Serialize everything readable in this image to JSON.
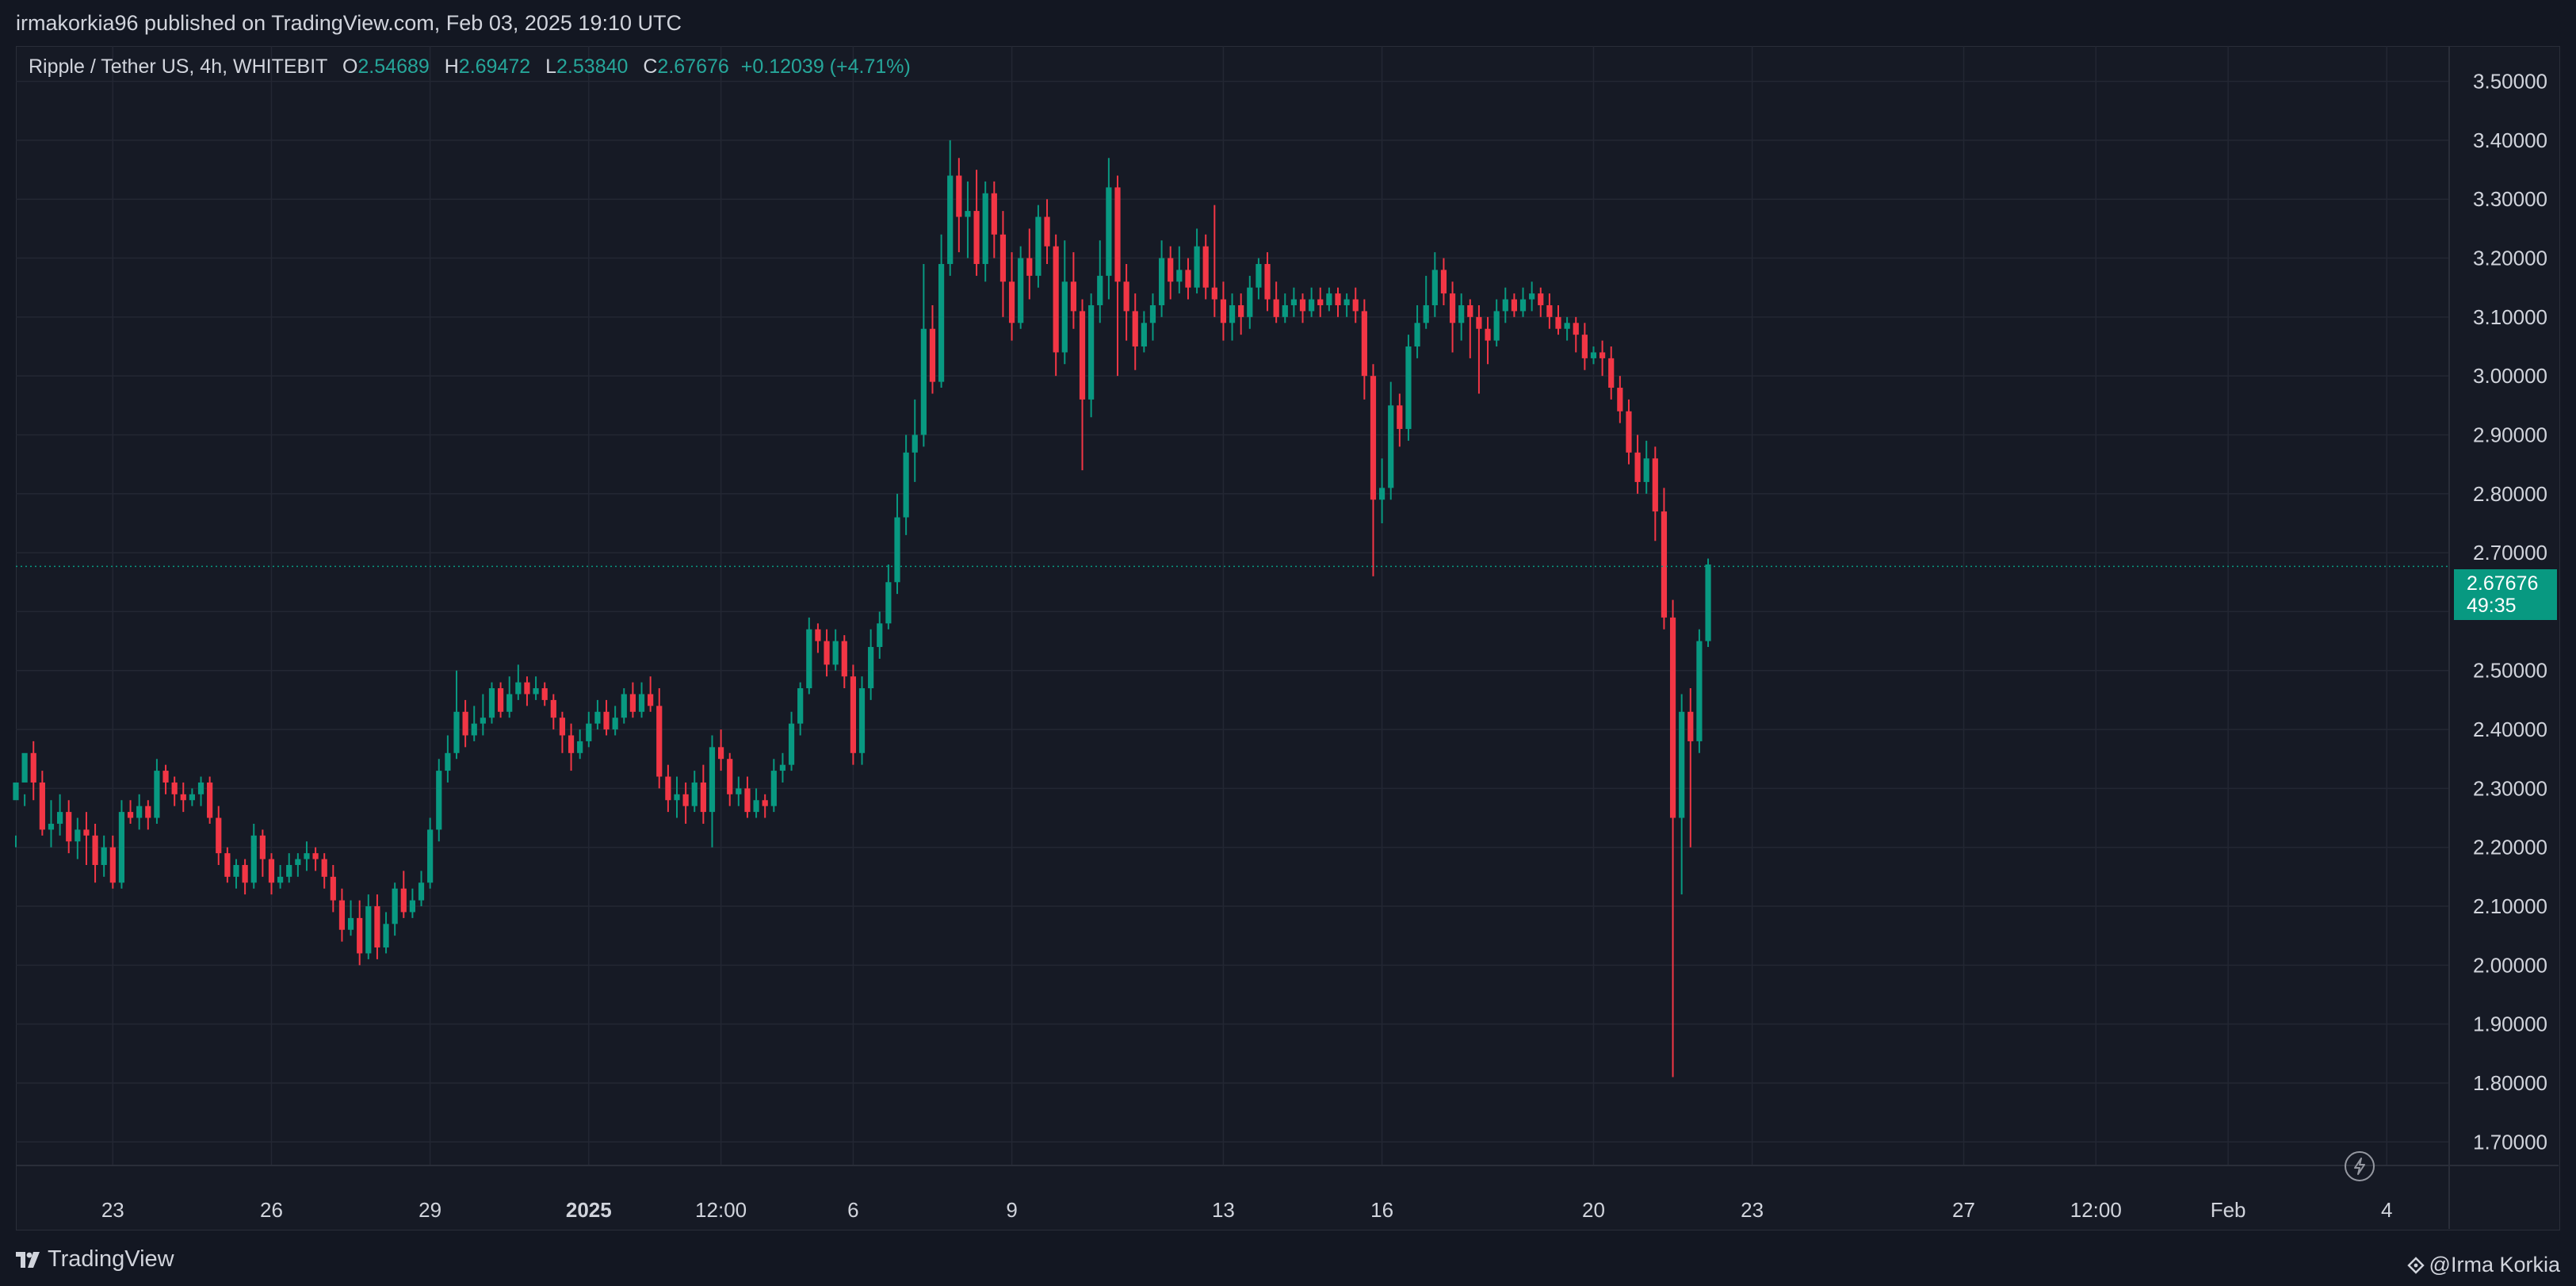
{
  "header": {
    "published": "irmakorkia96 published on TradingView.com, Feb 03, 2025 19:10 UTC"
  },
  "legend": {
    "symbol": "Ripple / Tether US, 4h, WHITEBIT",
    "o_label": "O",
    "o_value": "2.54689",
    "h_label": "H",
    "h_value": "2.69472",
    "l_label": "L",
    "l_value": "2.53840",
    "c_label": "C",
    "c_value": "2.67676",
    "change": "+0.12039 (+4.71%)"
  },
  "last_price": {
    "value": "2.67676",
    "countdown": "49:35"
  },
  "footer": {
    "brand": "TradingView",
    "author": "@Irma Korkia"
  },
  "colors": {
    "up": "#089981",
    "down": "#f23645",
    "background": "#161a25",
    "grid": "#232733",
    "text": "#d1d4dc"
  },
  "icons": {
    "brand": "tradingview-logo-icon",
    "author": "tradingview-mark-icon",
    "replay": "lightning-icon"
  },
  "chart_data": {
    "type": "candlestick",
    "interval": "4h",
    "y_axis_ticks": [
      "3.50000",
      "3.40000",
      "3.30000",
      "3.20000",
      "3.10000",
      "3.00000",
      "2.90000",
      "2.80000",
      "2.70000",
      "2.60000",
      "2.50000",
      "2.40000",
      "2.30000",
      "2.20000",
      "2.10000",
      "2.00000",
      "1.90000",
      "1.80000",
      "1.70000"
    ],
    "ylim": [
      1.66,
      3.56
    ],
    "x_axis_ticks": [
      {
        "label": "23",
        "index": 11
      },
      {
        "label": "26",
        "index": 29
      },
      {
        "label": "29",
        "index": 47
      },
      {
        "label": "2025",
        "index": 65,
        "bold": true
      },
      {
        "label": "12:00",
        "index": 80
      },
      {
        "label": "6",
        "index": 95
      },
      {
        "label": "9",
        "index": 113
      },
      {
        "label": "13",
        "index": 137
      },
      {
        "label": "16",
        "index": 155
      },
      {
        "label": "20",
        "index": 179
      },
      {
        "label": "23",
        "index": 197
      },
      {
        "label": "27",
        "index": 221
      },
      {
        "label": "12:00",
        "index": 236
      },
      {
        "label": "Feb",
        "index": 251
      },
      {
        "label": "4",
        "index": 269
      }
    ],
    "grid": true,
    "candles": [
      [
        2.28,
        2.31,
        2.22,
        2.2
      ],
      [
        2.31,
        2.36,
        2.29,
        2.27
      ],
      [
        2.36,
        2.31,
        2.38,
        2.28
      ],
      [
        2.31,
        2.23,
        2.33,
        2.22
      ],
      [
        2.23,
        2.24,
        2.28,
        2.2
      ],
      [
        2.24,
        2.26,
        2.29,
        2.22
      ],
      [
        2.26,
        2.21,
        2.28,
        2.19
      ],
      [
        2.21,
        2.23,
        2.25,
        2.18
      ],
      [
        2.23,
        2.22,
        2.26,
        2.17
      ],
      [
        2.22,
        2.17,
        2.24,
        2.14
      ],
      [
        2.17,
        2.2,
        2.22,
        2.15
      ],
      [
        2.2,
        2.14,
        2.22,
        2.13
      ],
      [
        2.14,
        2.26,
        2.28,
        2.13
      ],
      [
        2.26,
        2.25,
        2.28,
        2.24
      ],
      [
        2.25,
        2.27,
        2.29,
        2.23
      ],
      [
        2.27,
        2.25,
        2.28,
        2.23
      ],
      [
        2.25,
        2.33,
        2.35,
        2.24
      ],
      [
        2.33,
        2.31,
        2.34,
        2.29
      ],
      [
        2.31,
        2.29,
        2.32,
        2.27
      ],
      [
        2.29,
        2.28,
        2.31,
        2.26
      ],
      [
        2.28,
        2.29,
        2.3,
        2.27
      ],
      [
        2.29,
        2.31,
        2.32,
        2.27
      ],
      [
        2.31,
        2.25,
        2.32,
        2.24
      ],
      [
        2.25,
        2.19,
        2.27,
        2.17
      ],
      [
        2.19,
        2.15,
        2.2,
        2.14
      ],
      [
        2.15,
        2.17,
        2.18,
        2.13
      ],
      [
        2.17,
        2.14,
        2.18,
        2.12
      ],
      [
        2.14,
        2.22,
        2.24,
        2.13
      ],
      [
        2.22,
        2.18,
        2.23,
        2.15
      ],
      [
        2.18,
        2.14,
        2.19,
        2.12
      ],
      [
        2.14,
        2.15,
        2.17,
        2.13
      ],
      [
        2.15,
        2.17,
        2.19,
        2.14
      ],
      [
        2.17,
        2.18,
        2.19,
        2.15
      ],
      [
        2.18,
        2.19,
        2.21,
        2.16
      ],
      [
        2.19,
        2.18,
        2.2,
        2.16
      ],
      [
        2.18,
        2.15,
        2.19,
        2.13
      ],
      [
        2.15,
        2.11,
        2.17,
        2.09
      ],
      [
        2.11,
        2.06,
        2.13,
        2.04
      ],
      [
        2.06,
        2.08,
        2.11,
        2.05
      ],
      [
        2.08,
        2.02,
        2.11,
        2.0
      ],
      [
        2.02,
        2.1,
        2.12,
        2.01
      ],
      [
        2.1,
        2.03,
        2.12,
        2.01
      ],
      [
        2.03,
        2.07,
        2.09,
        2.02
      ],
      [
        2.07,
        2.13,
        2.14,
        2.05
      ],
      [
        2.13,
        2.09,
        2.16,
        2.08
      ],
      [
        2.09,
        2.11,
        2.13,
        2.08
      ],
      [
        2.11,
        2.14,
        2.16,
        2.1
      ],
      [
        2.14,
        2.23,
        2.25,
        2.13
      ],
      [
        2.23,
        2.33,
        2.35,
        2.21
      ],
      [
        2.33,
        2.36,
        2.39,
        2.31
      ],
      [
        2.36,
        2.43,
        2.5,
        2.35
      ],
      [
        2.43,
        2.39,
        2.45,
        2.37
      ],
      [
        2.39,
        2.41,
        2.44,
        2.38
      ],
      [
        2.41,
        2.42,
        2.46,
        2.39
      ],
      [
        2.42,
        2.47,
        2.48,
        2.41
      ],
      [
        2.47,
        2.43,
        2.48,
        2.42
      ],
      [
        2.43,
        2.46,
        2.49,
        2.42
      ],
      [
        2.46,
        2.48,
        2.51,
        2.45
      ],
      [
        2.48,
        2.46,
        2.49,
        2.44
      ],
      [
        2.46,
        2.47,
        2.49,
        2.45
      ],
      [
        2.47,
        2.45,
        2.48,
        2.44
      ],
      [
        2.45,
        2.42,
        2.46,
        2.4
      ],
      [
        2.42,
        2.39,
        2.43,
        2.36
      ],
      [
        2.39,
        2.36,
        2.41,
        2.33
      ],
      [
        2.36,
        2.38,
        2.4,
        2.35
      ],
      [
        2.38,
        2.41,
        2.43,
        2.37
      ],
      [
        2.41,
        2.43,
        2.45,
        2.4
      ],
      [
        2.43,
        2.4,
        2.45,
        2.39
      ],
      [
        2.4,
        2.42,
        2.44,
        2.39
      ],
      [
        2.42,
        2.46,
        2.47,
        2.41
      ],
      [
        2.46,
        2.43,
        2.48,
        2.42
      ],
      [
        2.43,
        2.46,
        2.48,
        2.42
      ],
      [
        2.46,
        2.44,
        2.49,
        2.43
      ],
      [
        2.44,
        2.32,
        2.47,
        2.3
      ],
      [
        2.32,
        2.28,
        2.34,
        2.26
      ],
      [
        2.28,
        2.29,
        2.32,
        2.25
      ],
      [
        2.29,
        2.27,
        2.31,
        2.24
      ],
      [
        2.27,
        2.31,
        2.33,
        2.26
      ],
      [
        2.31,
        2.26,
        2.34,
        2.24
      ],
      [
        2.26,
        2.37,
        2.39,
        2.2
      ],
      [
        2.37,
        2.35,
        2.4,
        2.33
      ],
      [
        2.35,
        2.29,
        2.36,
        2.27
      ],
      [
        2.29,
        2.3,
        2.32,
        2.27
      ],
      [
        2.3,
        2.26,
        2.32,
        2.25
      ],
      [
        2.26,
        2.28,
        2.3,
        2.25
      ],
      [
        2.28,
        2.27,
        2.29,
        2.25
      ],
      [
        2.27,
        2.33,
        2.35,
        2.26
      ],
      [
        2.33,
        2.34,
        2.36,
        2.31
      ],
      [
        2.34,
        2.41,
        2.43,
        2.33
      ],
      [
        2.41,
        2.47,
        2.48,
        2.39
      ],
      [
        2.47,
        2.57,
        2.59,
        2.46
      ],
      [
        2.57,
        2.55,
        2.58,
        2.53
      ],
      [
        2.55,
        2.51,
        2.57,
        2.49
      ],
      [
        2.51,
        2.55,
        2.57,
        2.5
      ],
      [
        2.55,
        2.49,
        2.56,
        2.47
      ],
      [
        2.49,
        2.36,
        2.51,
        2.34
      ],
      [
        2.36,
        2.47,
        2.49,
        2.34
      ],
      [
        2.47,
        2.54,
        2.57,
        2.45
      ],
      [
        2.54,
        2.58,
        2.6,
        2.52
      ],
      [
        2.58,
        2.65,
        2.68,
        2.57
      ],
      [
        2.65,
        2.76,
        2.8,
        2.63
      ],
      [
        2.76,
        2.87,
        2.9,
        2.73
      ],
      [
        2.87,
        2.9,
        2.96,
        2.82
      ],
      [
        2.9,
        3.08,
        3.19,
        2.88
      ],
      [
        3.08,
        2.99,
        3.12,
        2.97
      ],
      [
        2.99,
        3.19,
        3.24,
        2.98
      ],
      [
        3.19,
        3.34,
        3.4,
        3.17
      ],
      [
        3.34,
        3.27,
        3.37,
        3.21
      ],
      [
        3.27,
        3.28,
        3.33,
        3.2
      ],
      [
        3.28,
        3.19,
        3.35,
        3.17
      ],
      [
        3.19,
        3.31,
        3.33,
        3.16
      ],
      [
        3.31,
        3.24,
        3.33,
        3.2
      ],
      [
        3.24,
        3.16,
        3.28,
        3.1
      ],
      [
        3.16,
        3.09,
        3.21,
        3.06
      ],
      [
        3.09,
        3.2,
        3.22,
        3.08
      ],
      [
        3.2,
        3.17,
        3.25,
        3.13
      ],
      [
        3.17,
        3.27,
        3.29,
        3.15
      ],
      [
        3.27,
        3.22,
        3.3,
        3.19
      ],
      [
        3.22,
        3.04,
        3.24,
        3.0
      ],
      [
        3.04,
        3.16,
        3.23,
        3.02
      ],
      [
        3.16,
        3.11,
        3.21,
        3.08
      ],
      [
        3.11,
        2.96,
        3.13,
        2.84
      ],
      [
        2.96,
        3.12,
        3.14,
        2.93
      ],
      [
        3.12,
        3.17,
        3.23,
        3.09
      ],
      [
        3.17,
        3.32,
        3.37,
        3.13
      ],
      [
        3.32,
        3.16,
        3.34,
        3.0
      ],
      [
        3.16,
        3.11,
        3.19,
        3.06
      ],
      [
        3.11,
        3.05,
        3.14,
        3.01
      ],
      [
        3.05,
        3.09,
        3.11,
        3.04
      ],
      [
        3.09,
        3.12,
        3.14,
        3.06
      ],
      [
        3.12,
        3.2,
        3.23,
        3.1
      ],
      [
        3.2,
        3.16,
        3.22,
        3.13
      ],
      [
        3.16,
        3.18,
        3.22,
        3.14
      ],
      [
        3.18,
        3.15,
        3.2,
        3.13
      ],
      [
        3.15,
        3.22,
        3.25,
        3.14
      ],
      [
        3.22,
        3.15,
        3.24,
        3.13
      ],
      [
        3.15,
        3.13,
        3.29,
        3.1
      ],
      [
        3.13,
        3.09,
        3.16,
        3.06
      ],
      [
        3.09,
        3.12,
        3.14,
        3.06
      ],
      [
        3.12,
        3.1,
        3.14,
        3.07
      ],
      [
        3.1,
        3.15,
        3.17,
        3.08
      ],
      [
        3.15,
        3.19,
        3.2,
        3.13
      ],
      [
        3.19,
        3.13,
        3.21,
        3.11
      ],
      [
        3.13,
        3.1,
        3.16,
        3.09
      ],
      [
        3.1,
        3.12,
        3.14,
        3.09
      ],
      [
        3.12,
        3.13,
        3.15,
        3.1
      ],
      [
        3.13,
        3.11,
        3.14,
        3.09
      ],
      [
        3.11,
        3.13,
        3.15,
        3.1
      ],
      [
        3.13,
        3.12,
        3.15,
        3.1
      ],
      [
        3.12,
        3.14,
        3.15,
        3.11
      ],
      [
        3.14,
        3.12,
        3.15,
        3.1
      ],
      [
        3.12,
        3.13,
        3.14,
        3.1
      ],
      [
        3.13,
        3.11,
        3.15,
        3.09
      ],
      [
        3.11,
        3.0,
        3.13,
        2.96
      ],
      [
        3.0,
        2.79,
        3.02,
        2.66
      ],
      [
        2.79,
        2.81,
        2.86,
        2.75
      ],
      [
        2.81,
        2.95,
        2.99,
        2.79
      ],
      [
        2.95,
        2.91,
        2.97,
        2.88
      ],
      [
        2.91,
        3.05,
        3.07,
        2.89
      ],
      [
        3.05,
        3.09,
        3.12,
        3.03
      ],
      [
        3.09,
        3.12,
        3.17,
        3.08
      ],
      [
        3.12,
        3.18,
        3.21,
        3.1
      ],
      [
        3.18,
        3.14,
        3.2,
        3.12
      ],
      [
        3.14,
        3.09,
        3.16,
        3.04
      ],
      [
        3.09,
        3.12,
        3.14,
        3.06
      ],
      [
        3.12,
        3.1,
        3.13,
        3.03
      ],
      [
        3.1,
        3.08,
        3.12,
        2.97
      ],
      [
        3.08,
        3.06,
        3.1,
        3.02
      ],
      [
        3.06,
        3.11,
        3.13,
        3.05
      ],
      [
        3.11,
        3.13,
        3.15,
        3.09
      ],
      [
        3.13,
        3.11,
        3.14,
        3.1
      ],
      [
        3.11,
        3.13,
        3.15,
        3.1
      ],
      [
        3.13,
        3.14,
        3.16,
        3.11
      ],
      [
        3.14,
        3.12,
        3.15,
        3.1
      ],
      [
        3.12,
        3.1,
        3.14,
        3.08
      ],
      [
        3.1,
        3.08,
        3.12,
        3.07
      ],
      [
        3.08,
        3.09,
        3.1,
        3.06
      ],
      [
        3.09,
        3.07,
        3.1,
        3.04
      ],
      [
        3.07,
        3.03,
        3.09,
        3.01
      ],
      [
        3.03,
        3.04,
        3.05,
        3.02
      ],
      [
        3.04,
        3.03,
        3.06,
        3.0
      ],
      [
        3.03,
        2.98,
        3.05,
        2.96
      ],
      [
        2.98,
        2.94,
        3.0,
        2.92
      ],
      [
        2.94,
        2.87,
        2.96,
        2.85
      ],
      [
        2.87,
        2.82,
        2.9,
        2.8
      ],
      [
        2.82,
        2.86,
        2.89,
        2.8
      ],
      [
        2.86,
        2.77,
        2.88,
        2.72
      ],
      [
        2.77,
        2.59,
        2.81,
        2.57
      ],
      [
        2.59,
        2.25,
        2.62,
        1.81
      ],
      [
        2.25,
        2.43,
        2.46,
        2.12
      ],
      [
        2.43,
        2.38,
        2.47,
        2.2
      ],
      [
        2.38,
        2.55,
        2.57,
        2.36
      ],
      [
        2.55,
        2.68,
        2.69,
        2.54
      ]
    ]
  }
}
